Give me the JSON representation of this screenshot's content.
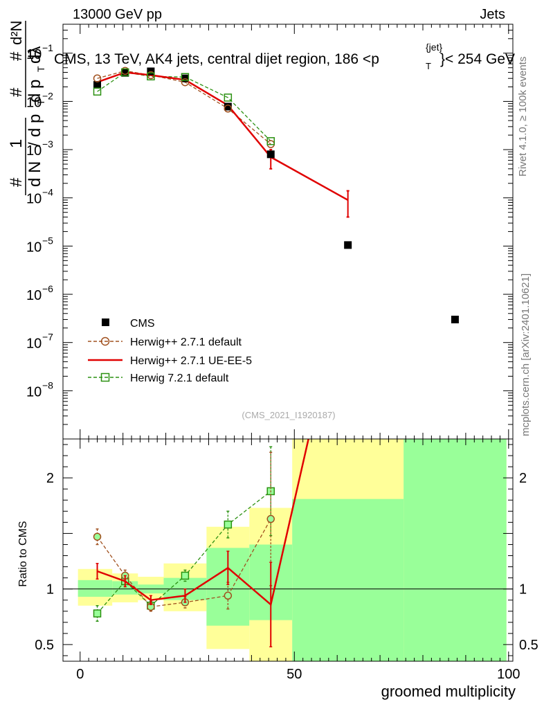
{
  "header": {
    "left": "13000 GeV pp",
    "right": "Jets"
  },
  "side_labels": {
    "rivet": "Rivet 4.1.0, ≥ 100k events",
    "mcplots": "mcplots.cern.ch [arXiv:2401.10621]"
  },
  "chart_data": {
    "type": "scatter",
    "title": "CMS, 13 TeV, AK4 jets, central dijet region, 186 <p",
    "title_sup": "{jet}",
    "title_sub": "T",
    "title_end": "}< 254 GeV",
    "analysis_tag": "(CMS_2021_I1920187)",
    "xlabel": "groomed multiplicity",
    "ylabel_top": "1/dN/dp_T  d²N/dp_T dλ",
    "ylabel_top_parts": {
      "one": "1",
      "hash1": "#",
      "dN": "d N",
      "slash": "/",
      "dp1": "d p",
      "T1": "T",
      "hash2": "#",
      "dp2": "d p",
      "T2": "T",
      "d2N": "d²N",
      "dl": "dλ",
      "hash3": "#"
    },
    "ylabel_ratio": "Ratio to CMS",
    "xlim": [
      -4,
      101
    ],
    "ylim_top_log10": [
      -9,
      -0.4
    ],
    "ylim_ratio": [
      0.35,
      2.35
    ],
    "x_ticks": [
      0,
      50,
      100
    ],
    "y_ticks_top": [
      {
        "base": "10",
        "exp": "−1",
        "value": -1
      },
      {
        "base": "10",
        "exp": "−2",
        "value": -2
      },
      {
        "base": "10",
        "exp": "−3",
        "value": -3
      },
      {
        "base": "10",
        "exp": "−4",
        "value": -4
      },
      {
        "base": "10",
        "exp": "−5",
        "value": -5
      },
      {
        "base": "10",
        "exp": "−6",
        "value": -6
      },
      {
        "base": "10",
        "exp": "−7",
        "value": -7
      },
      {
        "base": "10",
        "exp": "−8",
        "value": -8
      }
    ],
    "y_ticks_ratio": [
      {
        "label": "2",
        "value": 2
      },
      {
        "label": "1",
        "value": 1
      },
      {
        "label": "0.5",
        "value": 0.5
      }
    ],
    "legend": [
      {
        "key": "cms",
        "label": "CMS"
      },
      {
        "key": "h271",
        "label": "Herwig++ 2.7.1 default"
      },
      {
        "key": "hue",
        "label": "Herwig++ 2.7.1 UE-EE-5"
      },
      {
        "key": "h721",
        "label": "Herwig 7.2.1 default"
      }
    ],
    "colors": {
      "cms": "#000000",
      "h271": "#a0501e",
      "hue": "#e00000",
      "h721": "#2a9010",
      "band_green": "#99ff99",
      "band_yellow": "#ffff99"
    },
    "cms": {
      "x": [
        4,
        10.5,
        16.5,
        24.5,
        34.5,
        44.5,
        62.5,
        87.5
      ],
      "y": [
        0.022,
        0.039,
        0.042,
        0.03,
        0.0078,
        0.0008,
        1.05e-05,
        3e-07
      ]
    },
    "herwig271": {
      "x": [
        4,
        10.5,
        16.5,
        24.5,
        34.5,
        44.5
      ],
      "y": [
        0.03,
        0.043,
        0.035,
        0.025,
        0.0071,
        0.0013
      ]
    },
    "herwigUE": {
      "x": [
        4,
        10.5,
        16.5,
        24.5,
        34.5,
        44.5,
        62.5
      ],
      "y": [
        0.025,
        0.04,
        0.035,
        0.028,
        0.0083,
        0.0007,
        9e-05
      ],
      "yerr_lo": [
        0,
        0,
        0,
        0,
        0,
        0.0003,
        5e-05
      ],
      "yerr_hi": [
        0,
        0,
        0,
        0,
        0,
        0.0003,
        5e-05
      ]
    },
    "herwig721": {
      "x": [
        4,
        10.5,
        16.5,
        24.5,
        34.5,
        44.5
      ],
      "y": [
        0.016,
        0.04,
        0.033,
        0.032,
        0.012,
        0.0015
      ]
    },
    "ratio": {
      "bins": [
        {
          "lo": -0.5,
          "hi": 7.5,
          "green": [
            0.93,
            1.08
          ],
          "yellow": [
            0.85,
            1.18
          ]
        },
        {
          "lo": 7.5,
          "hi": 13.5,
          "green": [
            0.95,
            1.07
          ],
          "yellow": [
            0.88,
            1.14
          ]
        },
        {
          "lo": 13.5,
          "hi": 19.5,
          "green": [
            0.96,
            1.04
          ],
          "yellow": [
            0.9,
            1.11
          ]
        },
        {
          "lo": 19.5,
          "hi": 29.5,
          "green": [
            0.9,
            1.1
          ],
          "yellow": [
            0.8,
            1.23
          ]
        },
        {
          "lo": 29.5,
          "hi": 39.5,
          "green": [
            0.67,
            1.37
          ],
          "yellow": [
            0.46,
            1.56
          ]
        },
        {
          "lo": 39.5,
          "hi": 49.5,
          "green": [
            0.72,
            1.4
          ],
          "yellow": [
            0.35,
            1.73
          ]
        },
        {
          "lo": 49.5,
          "hi": 75.5,
          "green": [
            0.35,
            1.81
          ],
          "yellow": [
            0.35,
            2.35
          ]
        },
        {
          "lo": 75.5,
          "hi": 99.5,
          "green": [
            0.35,
            2.35
          ],
          "yellow": [
            0.35,
            2.35
          ]
        }
      ],
      "herwig271": {
        "x": [
          4,
          10.5,
          16.5,
          24.5,
          34.5,
          44.5
        ],
        "y": [
          1.47,
          1.12,
          0.84,
          0.88,
          0.94,
          1.63
        ],
        "err": [
          0.07,
          0.05,
          0.04,
          0.05,
          0.12,
          0.6
        ]
      },
      "herwigUE": {
        "x": [
          4,
          10.5,
          16.5,
          24.5,
          34.5,
          44.5,
          53.3
        ],
        "y": [
          1.16,
          1.07,
          0.9,
          0.94,
          1.19,
          0.86,
          2.35
        ],
        "err": [
          0.07,
          0.05,
          0.04,
          0.06,
          0.15,
          0.38,
          0
        ]
      },
      "herwig721": {
        "x": [
          4,
          10.5,
          16.5,
          24.5,
          34.5,
          44.5
        ],
        "y": [
          0.78,
          1.07,
          0.85,
          1.12,
          1.58,
          1.88
        ],
        "err": [
          0.07,
          0.05,
          0.04,
          0.05,
          0.12,
          0.4
        ]
      }
    }
  }
}
